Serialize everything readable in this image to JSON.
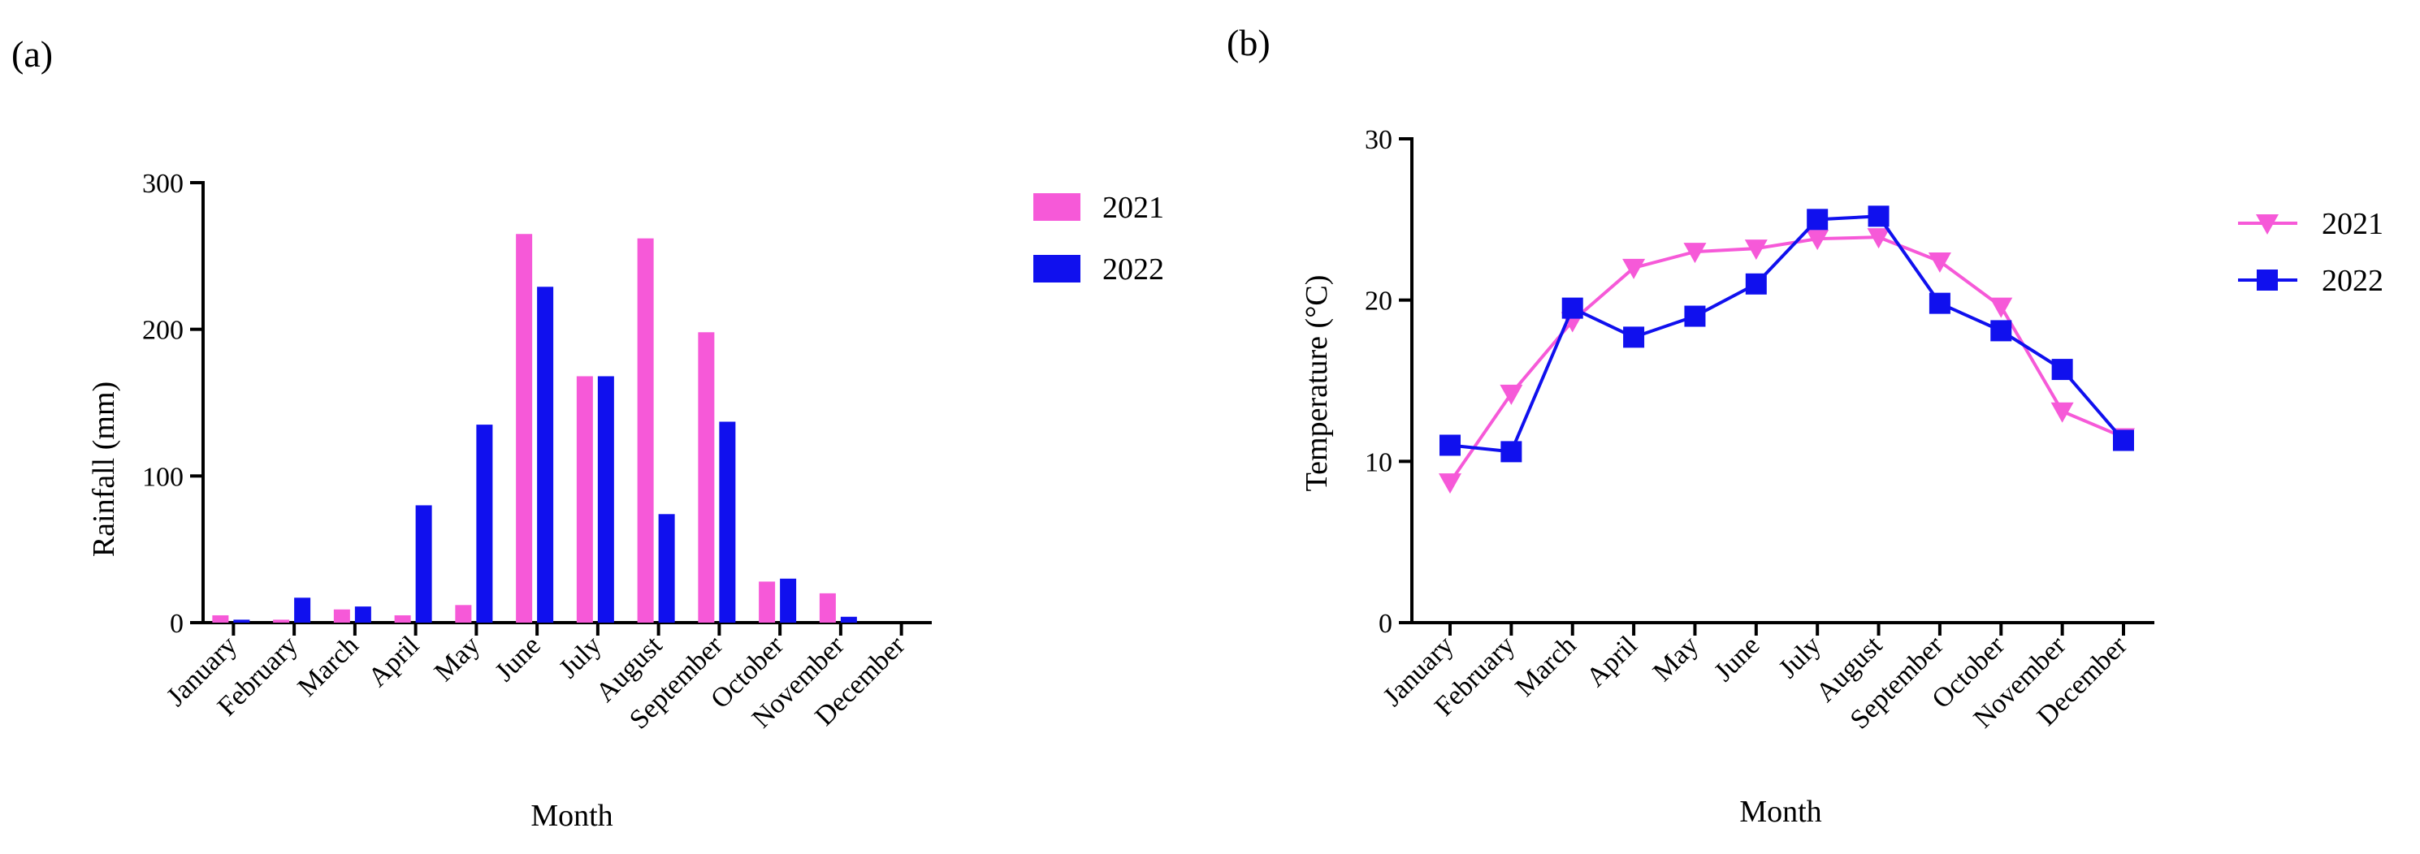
{
  "colors": {
    "series_2021": "#f659d8",
    "series_2022": "#1010ee"
  },
  "chart_data": [
    {
      "type": "bar",
      "panel_label": "(a)",
      "title": "",
      "xlabel": "Month",
      "ylabel": "Rainfall (mm)",
      "ylim": [
        0,
        300
      ],
      "yticks": [
        0,
        100,
        200,
        300
      ],
      "categories": [
        "January",
        "February",
        "March",
        "April",
        "May",
        "June",
        "July",
        "August",
        "September",
        "October",
        "November",
        "December"
      ],
      "series": [
        {
          "name": "2021",
          "values": [
            5,
            2,
            9,
            5,
            12,
            265,
            168,
            262,
            198,
            28,
            20,
            0
          ]
        },
        {
          "name": "2022",
          "values": [
            2,
            17,
            11,
            80,
            135,
            229,
            168,
            74,
            137,
            30,
            4,
            0
          ]
        }
      ],
      "legend": "right"
    },
    {
      "type": "line",
      "panel_label": "(b)",
      "title": "",
      "xlabel": "Month",
      "ylabel": "Temperature (°C)",
      "ylim": [
        0,
        30
      ],
      "yticks": [
        0,
        10,
        20,
        30
      ],
      "categories": [
        "January",
        "February",
        "March",
        "April",
        "May",
        "June",
        "July",
        "August",
        "September",
        "October",
        "November",
        "December"
      ],
      "series": [
        {
          "name": "2021",
          "marker": "triangle-down",
          "values": [
            8.7,
            14.2,
            18.7,
            22.0,
            23.0,
            23.2,
            23.8,
            23.9,
            22.4,
            19.6,
            13.1,
            11.5
          ]
        },
        {
          "name": "2022",
          "marker": "square",
          "values": [
            11.0,
            10.6,
            19.5,
            17.7,
            19.0,
            21.0,
            25.0,
            25.2,
            19.8,
            18.1,
            15.7,
            11.3
          ]
        }
      ],
      "legend": "right"
    }
  ]
}
